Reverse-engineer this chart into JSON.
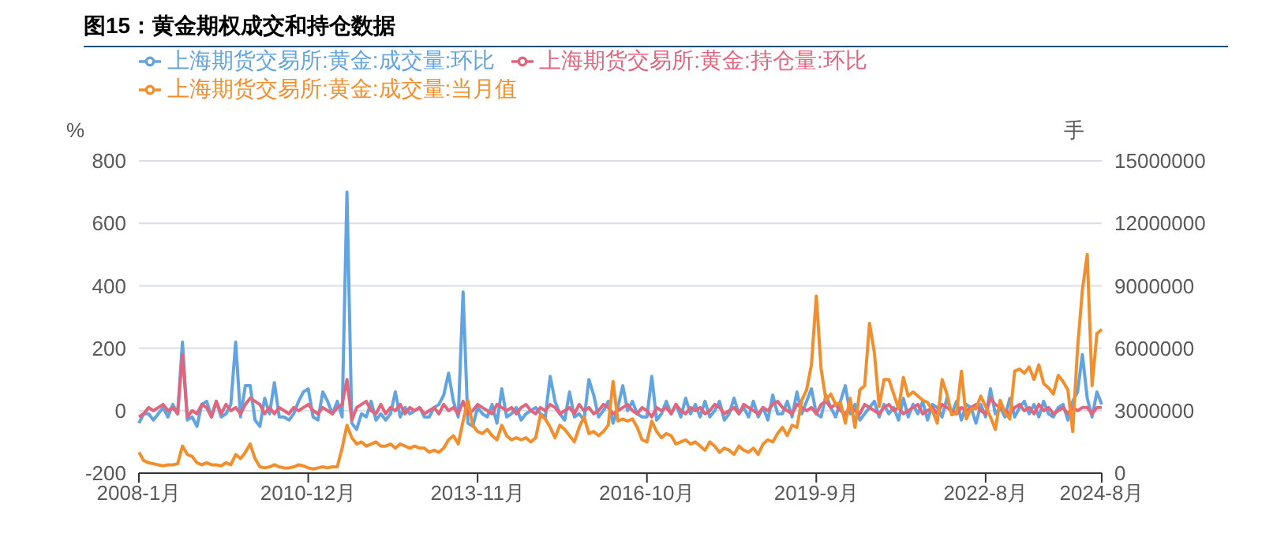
{
  "chart_data": {
    "type": "line",
    "title": "图15：黄金期权成交和持仓数据",
    "ylabel": "%",
    "y2label": "手",
    "categories": [
      "2008-1月",
      null,
      null,
      null,
      null,
      null,
      null,
      null,
      null,
      null,
      null,
      null,
      null,
      null,
      null,
      null,
      null,
      null,
      null,
      null,
      null,
      null,
      null,
      null,
      null,
      null,
      null,
      null,
      null,
      null,
      null,
      null,
      null,
      null,
      null,
      "2010-12月",
      null,
      null,
      null,
      null,
      null,
      null,
      null,
      null,
      null,
      null,
      null,
      null,
      null,
      null,
      null,
      null,
      null,
      null,
      null,
      null,
      null,
      null,
      null,
      null,
      null,
      null,
      null,
      null,
      null,
      null,
      null,
      null,
      null,
      null,
      "2013-11月",
      null,
      null,
      null,
      null,
      null,
      null,
      null,
      null,
      null,
      null,
      null,
      null,
      null,
      null,
      null,
      null,
      null,
      null,
      null,
      null,
      null,
      null,
      null,
      null,
      null,
      null,
      null,
      null,
      null,
      null,
      null,
      null,
      null,
      null,
      "2016-10月",
      null,
      null,
      null,
      null,
      null,
      null,
      null,
      null,
      null,
      null,
      null,
      null,
      null,
      null,
      null,
      null,
      null,
      null,
      null,
      null,
      null,
      null,
      null,
      null,
      null,
      null,
      null,
      null,
      null,
      null,
      null,
      null,
      null,
      null,
      "2019-9月",
      null,
      null,
      null,
      null,
      null,
      null,
      null,
      null,
      null,
      null,
      null,
      null,
      null,
      null,
      null,
      null,
      null,
      null,
      null,
      null,
      null,
      null,
      null,
      null,
      null,
      null,
      null,
      null,
      null,
      null,
      null,
      null,
      null,
      null,
      "2022-8月",
      null,
      null,
      null,
      null,
      null,
      null,
      null,
      null,
      null,
      null,
      null,
      null,
      null,
      null,
      null,
      null,
      null,
      null,
      null,
      null,
      null,
      null,
      null,
      "2024-8月"
    ],
    "series": [
      {
        "name": "上海期货交易所:黄金:成交量:环比",
        "color": "#62a4e2",
        "values": [
          -40,
          -10,
          -10,
          -30,
          -10,
          10,
          -20,
          20,
          -10,
          220,
          -30,
          -20,
          -50,
          20,
          30,
          -20,
          30,
          -20,
          -10,
          20,
          220,
          -20,
          80,
          80,
          -30,
          -50,
          40,
          -10,
          90,
          -20,
          -20,
          -30,
          -10,
          30,
          60,
          70,
          -20,
          -30,
          60,
          30,
          -10,
          30,
          -20,
          700,
          -40,
          -60,
          -10,
          -20,
          30,
          -30,
          -10,
          -30,
          -10,
          60,
          -20,
          10,
          -10,
          0,
          10,
          -20,
          -20,
          10,
          20,
          50,
          120,
          30,
          -20,
          380,
          -40,
          -50,
          10,
          -10,
          -20,
          20,
          -40,
          70,
          -20,
          -10,
          10,
          -30,
          -10,
          0,
          10,
          -10,
          -20,
          110,
          30,
          -10,
          -30,
          60,
          -20,
          -10,
          -30,
          100,
          50,
          -20,
          0,
          30,
          -40,
          10,
          80,
          0,
          30,
          -10,
          -20,
          -20,
          110,
          -30,
          -10,
          30,
          -10,
          20,
          -20,
          40,
          -10,
          20,
          -20,
          30,
          -20,
          0,
          30,
          -30,
          -10,
          40,
          -10,
          10,
          -20,
          30,
          -20,
          10,
          -30,
          50,
          -10,
          -10,
          30,
          -20,
          60,
          -10,
          30,
          70,
          -10,
          -20,
          50,
          10,
          -20,
          30,
          80,
          -10,
          20,
          -30,
          -10,
          10,
          30,
          -20,
          20,
          -10,
          10,
          -30,
          40,
          -20,
          20,
          -10,
          30,
          -30,
          20,
          10,
          -20,
          40,
          -10,
          30,
          -30,
          20,
          10,
          -40,
          20,
          -20,
          70,
          -10,
          10,
          -20,
          40,
          -20,
          10,
          30,
          -10,
          20,
          -20,
          30,
          -10,
          -20,
          10,
          20,
          -30,
          30,
          60,
          180,
          40,
          -20,
          60,
          20
        ]
      },
      {
        "name": "上海期货交易所:黄金:持仓量:环比",
        "color": "#e0667e",
        "values": [
          -20,
          -10,
          10,
          0,
          10,
          20,
          0,
          10,
          -10,
          180,
          -20,
          0,
          -10,
          20,
          10,
          -20,
          30,
          -10,
          20,
          0,
          10,
          -10,
          20,
          40,
          30,
          20,
          -10,
          10,
          -10,
          10,
          0,
          -10,
          10,
          0,
          10,
          20,
          0,
          -10,
          10,
          0,
          -10,
          10,
          20,
          100,
          -30,
          10,
          20,
          30,
          0,
          -10,
          20,
          -10,
          10,
          0,
          20,
          -10,
          10,
          0,
          10,
          -10,
          0,
          10,
          -10,
          20,
          0,
          10,
          -10,
          30,
          -10,
          0,
          20,
          10,
          0,
          -10,
          20,
          10,
          0,
          10,
          -10,
          10,
          20,
          0,
          -10,
          10,
          0,
          20,
          10,
          -10,
          0,
          10,
          -10,
          20,
          0,
          10,
          -10,
          0,
          20,
          10,
          -10,
          0,
          10,
          20,
          0,
          -10,
          10,
          0,
          -20,
          10,
          0,
          10,
          -10,
          20,
          0,
          -10,
          10,
          0,
          10,
          -10,
          0,
          20,
          10,
          -10,
          0,
          10,
          -10,
          20,
          10,
          0,
          -10,
          10,
          0,
          20,
          30,
          10,
          0,
          -10,
          20,
          10,
          0,
          10,
          -10,
          20,
          30,
          10,
          20,
          0,
          -10,
          10,
          0,
          -10,
          20,
          10,
          0,
          -10,
          10,
          20,
          0,
          10,
          -10,
          0,
          10,
          20,
          -10,
          0,
          10,
          -10,
          20,
          10,
          0,
          -10,
          10,
          0,
          10,
          20,
          0,
          -10,
          40,
          20,
          10,
          0,
          -10,
          10,
          20,
          0,
          10,
          -10,
          20,
          0,
          10,
          -10,
          0,
          10,
          -10,
          10,
          0,
          10,
          10,
          -10,
          10,
          10
        ]
      },
      {
        "name": "上海期货交易所:黄金:成交量:当月值",
        "color": "#f28e2b",
        "axis": "y2",
        "values": [
          1000000,
          600000,
          500000,
          450000,
          400000,
          350000,
          400000,
          400000,
          450000,
          1300000,
          900000,
          800000,
          500000,
          400000,
          500000,
          400000,
          400000,
          350000,
          500000,
          400000,
          900000,
          700000,
          1000000,
          1400000,
          700000,
          300000,
          250000,
          300000,
          400000,
          300000,
          250000,
          250000,
          300000,
          400000,
          350000,
          250000,
          200000,
          250000,
          300000,
          250000,
          300000,
          300000,
          1200000,
          2300000,
          1700000,
          1400000,
          1500000,
          1300000,
          1400000,
          1500000,
          1300000,
          1300000,
          1400000,
          1200000,
          1400000,
          1300000,
          1200000,
          1300000,
          1200000,
          1200000,
          1000000,
          1100000,
          1000000,
          1200000,
          1600000,
          1800000,
          1400000,
          2500000,
          3500000,
          2300000,
          2000000,
          1900000,
          2100000,
          1800000,
          1600000,
          2300000,
          1800000,
          1600000,
          1700000,
          1600000,
          1700000,
          1500000,
          1700000,
          2800000,
          2600000,
          2200000,
          1700000,
          2300000,
          2100000,
          1800000,
          1500000,
          2200000,
          2700000,
          1900000,
          2000000,
          1800000,
          2000000,
          2300000,
          4400000,
          2500000,
          2600000,
          2500000,
          2600000,
          2200000,
          1600000,
          1500000,
          2500000,
          2000000,
          1700000,
          1900000,
          1800000,
          1400000,
          1500000,
          1600000,
          1400000,
          1500000,
          1300000,
          1100000,
          1500000,
          1300000,
          1000000,
          1200000,
          1100000,
          900000,
          1300000,
          1100000,
          1000000,
          1200000,
          900000,
          1400000,
          1600000,
          1500000,
          1900000,
          2200000,
          1800000,
          2300000,
          2200000,
          3500000,
          4000000,
          5200000,
          8500000,
          5000000,
          3500000,
          3800000,
          3300000,
          3400000,
          2400000,
          3600000,
          2200000,
          4000000,
          4200000,
          7200000,
          5800000,
          3200000,
          4500000,
          4500000,
          3800000,
          3100000,
          4600000,
          3700000,
          3900000,
          3700000,
          3500000,
          3400000,
          3000000,
          2400000,
          4500000,
          3800000,
          2800000,
          2900000,
          4900000,
          2600000,
          3100000,
          3100000,
          3700000,
          3200000,
          2700000,
          2100000,
          3500000,
          2900000,
          2600000,
          4900000,
          5000000,
          4800000,
          5100000,
          4500000,
          5200000,
          4300000,
          4100000,
          3800000,
          4700000,
          4400000,
          4000000,
          2000000,
          6000000,
          8800000,
          10500000,
          4200000,
          6700000,
          6900000
        ]
      }
    ],
    "ylim": [
      -200,
      800
    ],
    "yticks": [
      -200,
      0,
      200,
      400,
      600,
      800
    ],
    "y2lim": [
      0,
      15000000
    ],
    "y2ticks": [
      0,
      3000000,
      6000000,
      9000000,
      12000000,
      15000000
    ],
    "grid": "y",
    "legend": "top",
    "marker": "none",
    "line_style": "solid"
  }
}
